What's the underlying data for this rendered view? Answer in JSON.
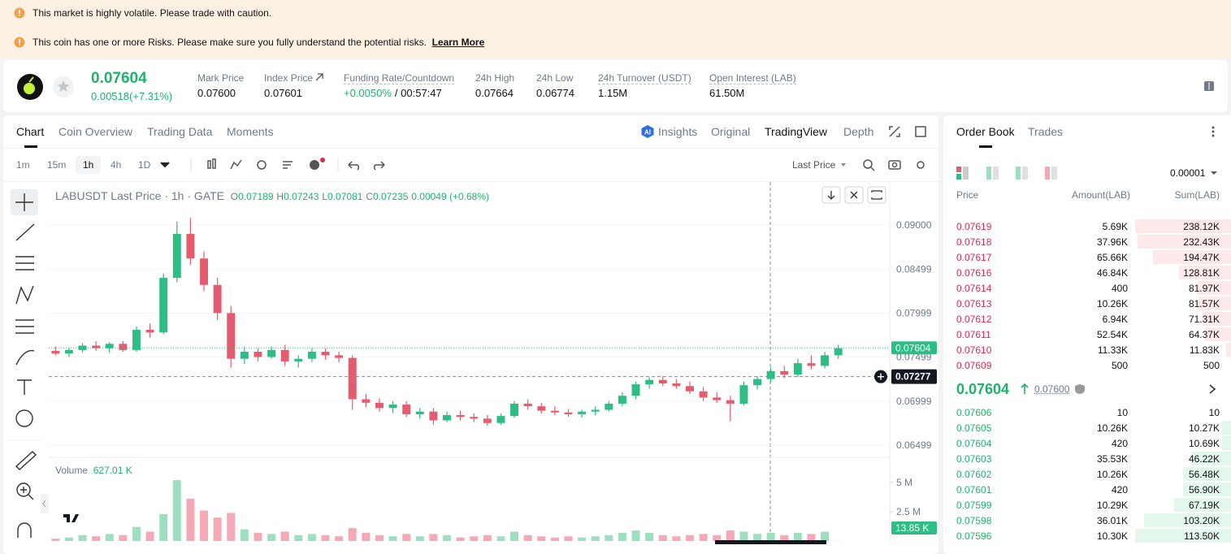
{
  "alerts": {
    "items": [
      "This market is highly volatile. Please trade with caution.",
      "This coin has one or more Risks. Please make sure you fully understand the potential risks."
    ],
    "link": "Learn More"
  },
  "ticker": {
    "price": "0.07604",
    "change": "0.00518(+7.31%)",
    "stats": [
      {
        "label": "Mark Price",
        "value": "0.07600"
      },
      {
        "label": "Index Price",
        "value": "0.07601"
      },
      {
        "label": "Funding Rate/Countdown",
        "value": "+0.0050%",
        "extra": "/ 00:57:47",
        "color": "#20b26c"
      },
      {
        "label": "24h High",
        "value": "0.07664"
      },
      {
        "label": "24h Low",
        "value": "0.06774"
      },
      {
        "label": "24h Turnover (USDT)",
        "value": "1.15M"
      },
      {
        "label": "Open Interest (LAB)",
        "value": "61.50M"
      }
    ]
  },
  "chart_tabs": [
    "Chart",
    "Coin Overview",
    "Trading Data",
    "Moments"
  ],
  "view_tabs": [
    "Insights",
    "Original",
    "TradingView",
    "Depth"
  ],
  "intervals": [
    "1m",
    "15m",
    "1h",
    "4h",
    "1D"
  ],
  "price_type": "Last Price",
  "chart_data": {
    "type": "candlestick",
    "title": "LABUSDT Last Price · 1h · GATE",
    "ohlc_legend": [
      {
        "label": "O",
        "value": "0.07189"
      },
      {
        "label": "H",
        "value": "0.07243"
      },
      {
        "label": "L",
        "value": "0.07081"
      },
      {
        "label": "C",
        "value": "0.07235"
      }
    ],
    "change_legend": "0.00049 (+0.68%)",
    "volume_title": "Volume",
    "volume_legend": "627.01 K",
    "up_color": "#2ebd85",
    "down_color": "#e35d6f",
    "up_volume_color": "#9ddfbf",
    "down_volume_color": "#f4a9b5",
    "ylim": [
      0.0636,
      0.0949
    ],
    "yticks": [
      {
        "value": 0.09,
        "label": "0.09000"
      },
      0.08499,
      0.07999,
      0.07499,
      0.06999,
      0.06499
    ],
    "volume_ylim": [
      0,
      7000000
    ],
    "volume_yticks": [
      {
        "value": 5000000,
        "label": "5 M"
      },
      {
        "value": 2500000,
        "label": "2.5 M"
      }
    ],
    "last_price": 0.07604,
    "crosshair_price": 0.07277,
    "last_volume": {
      "value": 13850,
      "label": "13.85 K"
    },
    "open": [
      0.0757,
      0.0754,
      0.0758,
      0.0763,
      0.076,
      0.0765,
      0.0758,
      0.0781,
      0.0778,
      0.084,
      0.089,
      0.0862,
      0.0832,
      0.08,
      0.0748,
      0.0756,
      0.075,
      0.0758,
      0.0745,
      0.0748,
      0.0756,
      0.0752,
      0.0749,
      0.0702,
      0.0698,
      0.0692,
      0.0696,
      0.0685,
      0.0688,
      0.0678,
      0.0684,
      0.0682,
      0.068,
      0.0675,
      0.0683,
      0.0697,
      0.0694,
      0.0689,
      0.0687,
      0.0685,
      0.0688,
      0.069,
      0.0697,
      0.0706,
      0.0719,
      0.0724,
      0.072,
      0.0717,
      0.0711,
      0.0704,
      0.0701,
      0.0697,
      0.0718,
      0.0725,
      0.0734,
      0.073,
      0.0743,
      0.074,
      0.0752
    ],
    "high": [
      0.0762,
      0.076,
      0.0766,
      0.0768,
      0.0767,
      0.0768,
      0.0785,
      0.0788,
      0.0845,
      0.0904,
      0.0908,
      0.087,
      0.084,
      0.0808,
      0.0762,
      0.076,
      0.0762,
      0.0764,
      0.0752,
      0.076,
      0.076,
      0.0756,
      0.0752,
      0.0708,
      0.0703,
      0.07,
      0.07,
      0.0692,
      0.0692,
      0.0688,
      0.0689,
      0.0686,
      0.0684,
      0.0686,
      0.07,
      0.0702,
      0.0698,
      0.0694,
      0.0691,
      0.069,
      0.0694,
      0.07,
      0.071,
      0.0722,
      0.0727,
      0.0728,
      0.0725,
      0.0722,
      0.0716,
      0.071,
      0.0706,
      0.0722,
      0.0728,
      0.0738,
      0.074,
      0.0748,
      0.0752,
      0.0756,
      0.0764
    ],
    "low": [
      0.0752,
      0.075,
      0.0755,
      0.0757,
      0.0755,
      0.0756,
      0.0756,
      0.0772,
      0.0776,
      0.0835,
      0.0855,
      0.0825,
      0.0792,
      0.0738,
      0.0742,
      0.0745,
      0.0748,
      0.074,
      0.0738,
      0.0744,
      0.0747,
      0.0744,
      0.069,
      0.0693,
      0.0688,
      0.0686,
      0.0682,
      0.068,
      0.0673,
      0.0676,
      0.0678,
      0.0676,
      0.0672,
      0.0673,
      0.0681,
      0.069,
      0.0686,
      0.0684,
      0.0682,
      0.0681,
      0.0684,
      0.0688,
      0.0694,
      0.0702,
      0.0714,
      0.0717,
      0.0714,
      0.0708,
      0.07,
      0.0698,
      0.0677,
      0.0695,
      0.0713,
      0.0721,
      0.0726,
      0.0727,
      0.0736,
      0.0737,
      0.0748
    ],
    "close": [
      0.0754,
      0.0758,
      0.0763,
      0.076,
      0.0765,
      0.0758,
      0.0781,
      0.0778,
      0.084,
      0.089,
      0.0862,
      0.0832,
      0.08,
      0.0748,
      0.0756,
      0.075,
      0.0758,
      0.0745,
      0.0748,
      0.0756,
      0.0752,
      0.0749,
      0.0702,
      0.0698,
      0.0692,
      0.0696,
      0.0685,
      0.0688,
      0.0678,
      0.0684,
      0.0682,
      0.068,
      0.0675,
      0.0683,
      0.0697,
      0.0694,
      0.0689,
      0.0687,
      0.0685,
      0.0688,
      0.069,
      0.0697,
      0.0706,
      0.0719,
      0.0724,
      0.072,
      0.0717,
      0.0711,
      0.0704,
      0.0701,
      0.0697,
      0.0718,
      0.0725,
      0.0734,
      0.073,
      0.0743,
      0.074,
      0.0752,
      0.076
    ],
    "volume": [
      200000,
      300000,
      500000,
      400000,
      600000,
      500000,
      1200000,
      800000,
      2300000,
      5200000,
      3600000,
      2600000,
      2000000,
      2400000,
      1000000,
      700000,
      600000,
      800000,
      500000,
      600000,
      500000,
      400000,
      1100000,
      700000,
      500000,
      400000,
      600000,
      400000,
      600000,
      500000,
      300000,
      400000,
      500000,
      400000,
      800000,
      500000,
      400000,
      300000,
      400000,
      300000,
      400000,
      500000,
      700000,
      900000,
      700000,
      500000,
      400000,
      500000,
      600000,
      500000,
      900000,
      800000,
      600000,
      700000,
      500000,
      700000,
      600000,
      800000,
      13850
    ]
  },
  "order_book": {
    "tabs": [
      "Order Book",
      "Trades"
    ],
    "precision": "0.00001",
    "headers": [
      "Price",
      "Amount(LAB)",
      "Sum(LAB)"
    ],
    "asks": [
      {
        "price": "0.07619",
        "amount": "5.69K",
        "sum": {
          "value": 238120,
          "label": "238.12K"
        }
      },
      {
        "price": "0.07618",
        "amount": "37.96K",
        "sum": {
          "value": 232430,
          "label": "232.43K"
        }
      },
      {
        "price": "0.07617",
        "amount": "65.66K",
        "sum": {
          "value": 194470,
          "label": "194.47K"
        }
      },
      {
        "price": "0.07616",
        "amount": "46.84K",
        "sum": {
          "value": 128810,
          "label": "128.81K"
        }
      },
      {
        "price": "0.07614",
        "amount": "400",
        "sum": {
          "value": 81970,
          "label": "81.97K"
        }
      },
      {
        "price": "0.07613",
        "amount": "10.26K",
        "sum": {
          "value": 81570,
          "label": "81.57K"
        }
      },
      {
        "price": "0.07612",
        "amount": "6.94K",
        "sum": {
          "value": 71310,
          "label": "71.31K"
        }
      },
      {
        "price": "0.07611",
        "amount": "52.54K",
        "sum": {
          "value": 64370,
          "label": "64.37K"
        }
      },
      {
        "price": "0.07610",
        "amount": "11.33K",
        "sum": {
          "value": 11830,
          "label": "11.83K"
        }
      },
      {
        "price": "0.07609",
        "amount": "500",
        "sum": 500
      }
    ],
    "mid": {
      "price": "0.07604",
      "mark": "0.07600"
    },
    "bids": [
      {
        "price": "0.07606",
        "amount": "10",
        "sum": 10
      },
      {
        "price": "0.07605",
        "amount": "10.26K",
        "sum": {
          "value": 10270,
          "label": "10.27K"
        }
      },
      {
        "price": "0.07604",
        "amount": "420",
        "sum": {
          "value": 10690,
          "label": "10.69K"
        }
      },
      {
        "price": "0.07603",
        "amount": "35.53K",
        "sum": {
          "value": 46220,
          "label": "46.22K"
        }
      },
      {
        "price": "0.07602",
        "amount": "10.26K",
        "sum": {
          "value": 56480,
          "label": "56.48K"
        }
      },
      {
        "price": "0.07601",
        "amount": "420",
        "sum": {
          "value": 56900,
          "label": "56.90K"
        }
      },
      {
        "price": "0.07599",
        "amount": "10.29K",
        "sum": {
          "value": 67190,
          "label": "67.19K"
        }
      },
      {
        "price": "0.07598",
        "amount": "36.01K",
        "sum": {
          "value": 103200,
          "label": "103.20K"
        }
      },
      {
        "price": "0.07596",
        "amount": "10.30K",
        "sum": {
          "value": 113500,
          "label": "113.50K"
        }
      }
    ]
  }
}
